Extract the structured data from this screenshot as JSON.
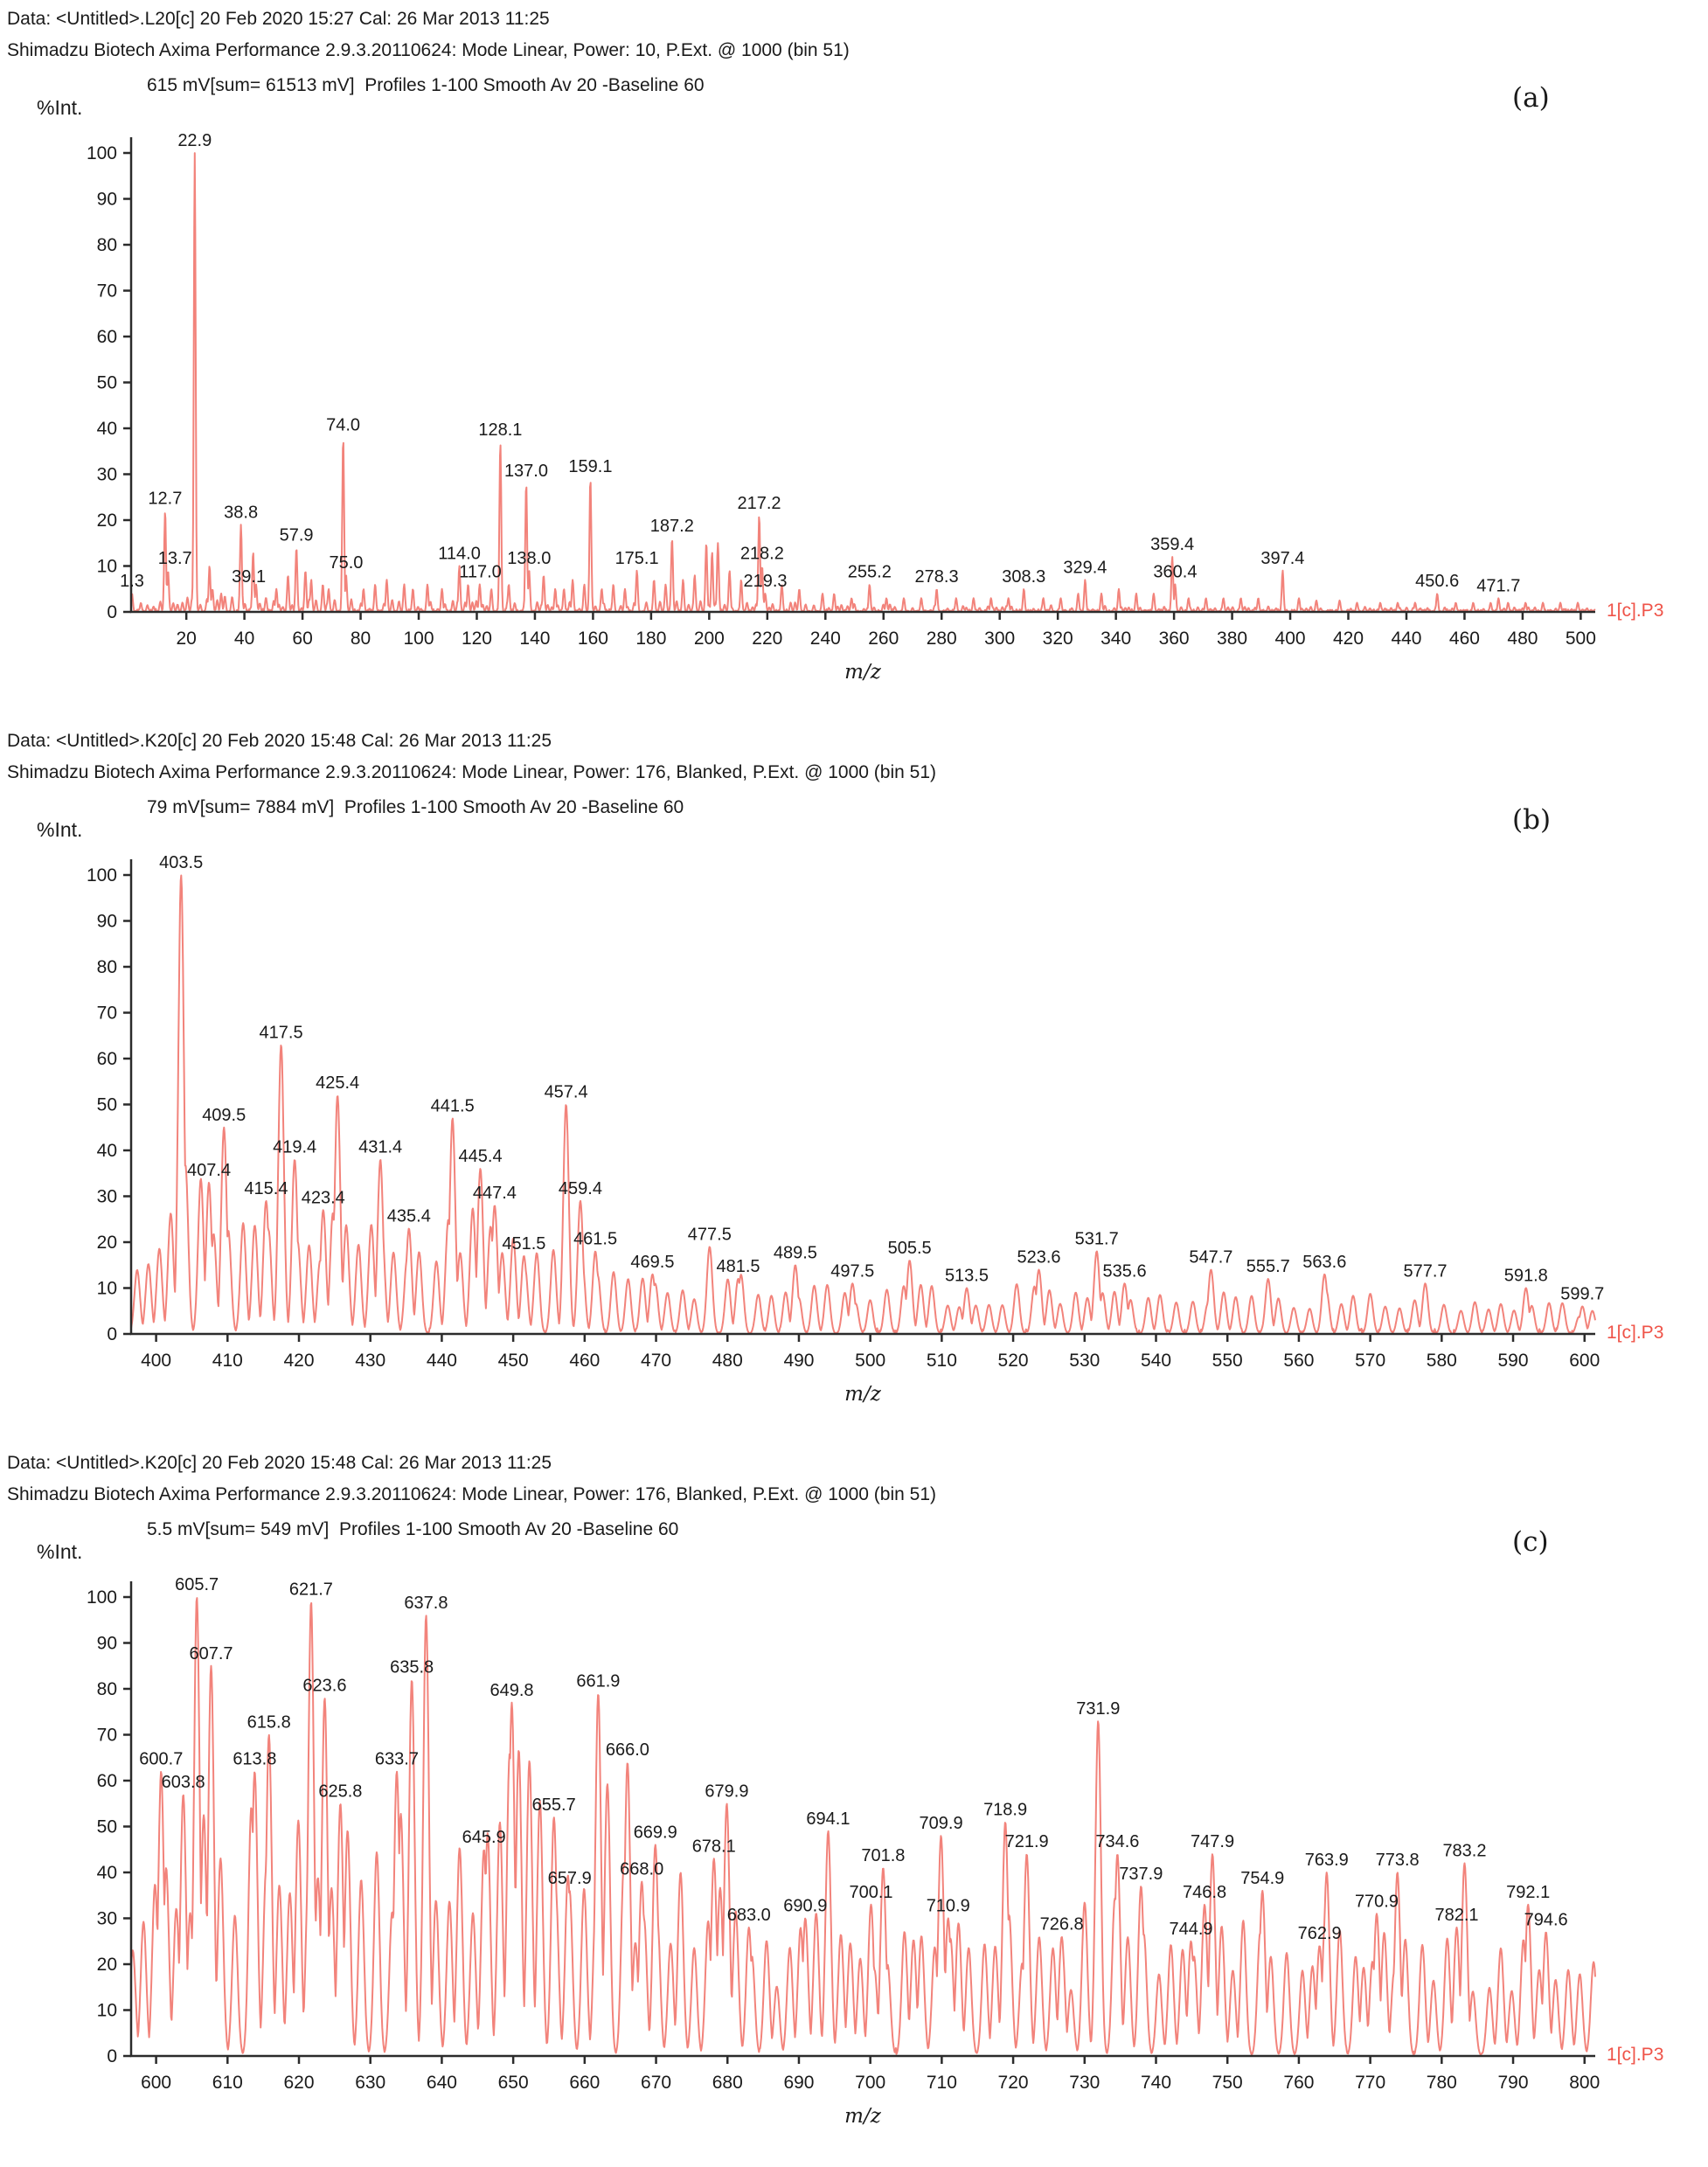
{
  "colors": {
    "trace": "#F2837B",
    "trace_label": "#EF5348",
    "axis": "#2b2b2b",
    "text": "#1a1a1a"
  },
  "chart_data": [
    {
      "type": "line",
      "panel_label": "(a)",
      "header_line1": "Data: <Untitled>.L20[c] 20 Feb 2020 15:27 Cal: 26 Mar 2013 11:25",
      "header_line2": "Shimadzu Biotech Axima Performance 2.9.3.20110624: Mode Linear, Power: 10, P.Ext. @ 1000 (bin 51)",
      "header_line3": "615 mV[sum= 61513 mV]  Profiles 1-100 Smooth Av 20 -Baseline 60",
      "ylabel": "%Int.",
      "xlabel": "m/z",
      "trace_label": "1[c].P3",
      "xlim": [
        1,
        505
      ],
      "ylim": [
        0,
        100
      ],
      "xtick_start": 20,
      "xtick_step": 20,
      "xtick_end": 500,
      "ytick_step": 10,
      "sigma": 0.45,
      "seed": 7,
      "gap_base": 1.0,
      "gap_jitter": 2.4,
      "amp_base": 0.3,
      "amp_jitter": 0.9,
      "floor": 0.7,
      "labeled_peaks": [
        {
          "m": "1.3",
          "i": 4
        },
        {
          "m": "12.7",
          "i": 22
        },
        {
          "m": "13.7",
          "i": 9,
          "dx": 8
        },
        {
          "m": "22.9",
          "i": 100
        },
        {
          "m": "38.8",
          "i": 19
        },
        {
          "m": "39.1",
          "i": 5,
          "dx": 8
        },
        {
          "m": "57.9",
          "i": 14
        },
        {
          "m": "74.0",
          "i": 38
        },
        {
          "m": "75.0",
          "i": 8
        },
        {
          "m": "114.0",
          "i": 10
        },
        {
          "m": "117.0",
          "i": 6,
          "dx": 14
        },
        {
          "m": "128.1",
          "i": 37
        },
        {
          "m": "137.0",
          "i": 28
        },
        {
          "m": "138.0",
          "i": 9
        },
        {
          "m": "159.1",
          "i": 29
        },
        {
          "m": "175.1",
          "i": 9
        },
        {
          "m": "187.2",
          "i": 16
        },
        {
          "m": "217.2",
          "i": 21
        },
        {
          "m": "218.2",
          "i": 10
        },
        {
          "m": "219.3",
          "i": 4
        },
        {
          "m": "255.2",
          "i": 6
        },
        {
          "m": "278.3",
          "i": 5
        },
        {
          "m": "308.3",
          "i": 5
        },
        {
          "m": "329.4",
          "i": 7
        },
        {
          "m": "359.4",
          "i": 12
        },
        {
          "m": "360.4",
          "i": 6
        },
        {
          "m": "397.4",
          "i": 9
        },
        {
          "m": "450.6",
          "i": 4
        },
        {
          "m": "471.7",
          "i": 3
        }
      ],
      "minor_peaks": [
        [
          28,
          10
        ],
        [
          29,
          5
        ],
        [
          32,
          4
        ],
        [
          43,
          13
        ],
        [
          44,
          6
        ],
        [
          51,
          5
        ],
        [
          55,
          8
        ],
        [
          61,
          9
        ],
        [
          63,
          7
        ],
        [
          67,
          6
        ],
        [
          69,
          5
        ],
        [
          81,
          5
        ],
        [
          85,
          6
        ],
        [
          89,
          7
        ],
        [
          95,
          6
        ],
        [
          98,
          5
        ],
        [
          103,
          6
        ],
        [
          108,
          5
        ],
        [
          121,
          6
        ],
        [
          125,
          5
        ],
        [
          131,
          6
        ],
        [
          143,
          8
        ],
        [
          147,
          5
        ],
        [
          150,
          5
        ],
        [
          153,
          7
        ],
        [
          157,
          6
        ],
        [
          163,
          5
        ],
        [
          167,
          6
        ],
        [
          171,
          5
        ],
        [
          181,
          7
        ],
        [
          185,
          6
        ],
        [
          191,
          7
        ],
        [
          195,
          8
        ],
        [
          199,
          15
        ],
        [
          201,
          13
        ],
        [
          203,
          15
        ],
        [
          207,
          9
        ],
        [
          211,
          7
        ],
        [
          225,
          6
        ],
        [
          231,
          5
        ],
        [
          239,
          4
        ],
        [
          243,
          4
        ],
        [
          249,
          3
        ],
        [
          261,
          3
        ],
        [
          267,
          3
        ],
        [
          273,
          3
        ],
        [
          285,
          3
        ],
        [
          291,
          3
        ],
        [
          297,
          3
        ],
        [
          303,
          3
        ],
        [
          315,
          3
        ],
        [
          321,
          3
        ],
        [
          327,
          4
        ],
        [
          335,
          4
        ],
        [
          341,
          5
        ],
        [
          347,
          4
        ],
        [
          353,
          4
        ],
        [
          365,
          3
        ],
        [
          371,
          3
        ],
        [
          377,
          3
        ],
        [
          383,
          3
        ],
        [
          389,
          3
        ],
        [
          403,
          3
        ],
        [
          409,
          2.5
        ],
        [
          417,
          2.5
        ],
        [
          423,
          2
        ],
        [
          431,
          2
        ],
        [
          437,
          2
        ],
        [
          443,
          2
        ],
        [
          457,
          2
        ],
        [
          463,
          2
        ],
        [
          469,
          2
        ],
        [
          475,
          2
        ],
        [
          481,
          2
        ],
        [
          487,
          2
        ],
        [
          493,
          2
        ],
        [
          499,
          2
        ]
      ],
      "noise_envelope": [
        [
          1,
          2
        ],
        [
          30,
          3
        ],
        [
          60,
          2.5
        ],
        [
          120,
          2
        ],
        [
          200,
          2
        ],
        [
          260,
          1.5
        ],
        [
          330,
          1.2
        ],
        [
          420,
          1
        ],
        [
          505,
          0.8
        ]
      ]
    },
    {
      "type": "line",
      "panel_label": "(b)",
      "header_line1": "Data: <Untitled>.K20[c] 20 Feb 2020 15:48 Cal: 26 Mar 2013 11:25",
      "header_line2": "Shimadzu Biotech Axima Performance 2.9.3.20110624: Mode Linear, Power: 176, Blanked, P.Ext. @ 1000 (bin 51)",
      "header_line3": "79 mV[sum= 7884 mV]  Profiles 1-100 Smooth Av 20 -Baseline 60",
      "ylabel": "%Int.",
      "xlabel": "m/z",
      "trace_label": "1[c].P3",
      "xlim": [
        396.5,
        601.5
      ],
      "ylim": [
        0,
        100
      ],
      "xtick_start": 400,
      "xtick_step": 10,
      "xtick_end": 600,
      "ytick_step": 10,
      "sigma": 0.55,
      "seed": 13,
      "gap_base": 1.5,
      "gap_jitter": 1.0,
      "amp_base": 0.55,
      "amp_jitter": 0.45,
      "floor": 1.4,
      "labeled_peaks": [
        {
          "m": "403.5",
          "i": 100
        },
        {
          "m": "407.4",
          "i": 33
        },
        {
          "m": "409.5",
          "i": 45
        },
        {
          "m": "415.4",
          "i": 29
        },
        {
          "m": "417.5",
          "i": 63
        },
        {
          "m": "419.4",
          "i": 38
        },
        {
          "m": "423.4",
          "i": 27
        },
        {
          "m": "425.4",
          "i": 52
        },
        {
          "m": "431.4",
          "i": 38
        },
        {
          "m": "435.4",
          "i": 23
        },
        {
          "m": "441.5",
          "i": 47
        },
        {
          "m": "445.4",
          "i": 36
        },
        {
          "m": "447.4",
          "i": 28
        },
        {
          "m": "451.5",
          "i": 17
        },
        {
          "m": "457.4",
          "i": 50
        },
        {
          "m": "459.4",
          "i": 29
        },
        {
          "m": "461.5",
          "i": 18
        },
        {
          "m": "469.5",
          "i": 13
        },
        {
          "m": "477.5",
          "i": 19
        },
        {
          "m": "481.5",
          "i": 12
        },
        {
          "m": "489.5",
          "i": 15
        },
        {
          "m": "497.5",
          "i": 11
        },
        {
          "m": "505.5",
          "i": 16
        },
        {
          "m": "513.5",
          "i": 10
        },
        {
          "m": "523.6",
          "i": 14
        },
        {
          "m": "531.7",
          "i": 18
        },
        {
          "m": "535.6",
          "i": 11
        },
        {
          "m": "547.7",
          "i": 14
        },
        {
          "m": "555.7",
          "i": 12
        },
        {
          "m": "563.6",
          "i": 13
        },
        {
          "m": "577.7",
          "i": 11
        },
        {
          "m": "591.8",
          "i": 10
        },
        {
          "m": "599.7",
          "i": 6
        }
      ],
      "minor_peaks": [],
      "noise_envelope": [
        [
          397,
          18
        ],
        [
          401,
          36
        ],
        [
          405,
          40
        ],
        [
          411,
          30
        ],
        [
          417,
          26
        ],
        [
          421,
          28
        ],
        [
          427,
          27
        ],
        [
          433,
          28
        ],
        [
          439,
          26
        ],
        [
          443,
          30
        ],
        [
          449,
          24
        ],
        [
          455,
          19
        ],
        [
          461,
          15
        ],
        [
          467,
          13
        ],
        [
          473,
          13
        ],
        [
          479,
          13
        ],
        [
          485,
          14
        ],
        [
          491,
          12
        ],
        [
          497,
          11
        ],
        [
          503,
          12
        ],
        [
          509,
          11
        ],
        [
          515,
          10
        ],
        [
          521,
          11
        ],
        [
          527,
          10
        ],
        [
          533,
          10
        ],
        [
          539,
          10
        ],
        [
          545,
          10
        ],
        [
          551,
          9
        ],
        [
          557,
          9
        ],
        [
          563,
          10
        ],
        [
          569,
          9
        ],
        [
          575,
          9
        ],
        [
          581,
          8
        ],
        [
          587,
          8
        ],
        [
          593,
          8
        ],
        [
          602,
          6
        ]
      ]
    },
    {
      "type": "line",
      "panel_label": "(c)",
      "header_line1": "Data: <Untitled>.K20[c] 20 Feb 2020 15:48 Cal: 26 Mar 2013 11:25",
      "header_line2": "Shimadzu Biotech Axima Performance 2.9.3.20110624: Mode Linear, Power: 176, Blanked, P.Ext. @ 1000 (bin 51)",
      "header_line3": "5.5 mV[sum= 549 mV]  Profiles 1-100 Smooth Av 20 -Baseline 60",
      "ylabel": "%Int.",
      "xlabel": "m/z",
      "trace_label": "1[c].P3",
      "xlim": [
        596.5,
        801.5
      ],
      "ylim": [
        0,
        100
      ],
      "xtick_start": 600,
      "xtick_step": 10,
      "xtick_end": 800,
      "ytick_step": 10,
      "sigma": 0.55,
      "seed": 29,
      "gap_base": 1.1,
      "gap_jitter": 1.3,
      "amp_base": 0.5,
      "amp_jitter": 0.5,
      "floor": 2,
      "labeled_peaks": [
        {
          "m": "600.7",
          "i": 62
        },
        {
          "m": "603.8",
          "i": 57
        },
        {
          "m": "605.7",
          "i": 100
        },
        {
          "m": "607.7",
          "i": 85
        },
        {
          "m": "613.8",
          "i": 62
        },
        {
          "m": "615.8",
          "i": 70
        },
        {
          "m": "621.7",
          "i": 99
        },
        {
          "m": "623.6",
          "i": 78
        },
        {
          "m": "625.8",
          "i": 55
        },
        {
          "m": "633.7",
          "i": 62
        },
        {
          "m": "635.8",
          "i": 82
        },
        {
          "m": "637.8",
          "i": 96
        },
        {
          "m": "645.9",
          "i": 45
        },
        {
          "m": "649.8",
          "i": 77
        },
        {
          "m": "655.7",
          "i": 52
        },
        {
          "m": "657.9",
          "i": 36
        },
        {
          "m": "661.9",
          "i": 79
        },
        {
          "m": "666.0",
          "i": 64
        },
        {
          "m": "668.0",
          "i": 38
        },
        {
          "m": "669.9",
          "i": 46
        },
        {
          "m": "678.1",
          "i": 43
        },
        {
          "m": "679.9",
          "i": 55
        },
        {
          "m": "683.0",
          "i": 28
        },
        {
          "m": "690.9",
          "i": 30
        },
        {
          "m": "694.1",
          "i": 49
        },
        {
          "m": "700.1",
          "i": 33
        },
        {
          "m": "701.8",
          "i": 41
        },
        {
          "m": "709.9",
          "i": 48
        },
        {
          "m": "710.9",
          "i": 30
        },
        {
          "m": "718.9",
          "i": 51
        },
        {
          "m": "721.9",
          "i": 44
        },
        {
          "m": "726.8",
          "i": 26
        },
        {
          "m": "731.9",
          "i": 73
        },
        {
          "m": "734.6",
          "i": 44
        },
        {
          "m": "737.9",
          "i": 37
        },
        {
          "m": "744.9",
          "i": 25
        },
        {
          "m": "746.8",
          "i": 33
        },
        {
          "m": "747.9",
          "i": 44
        },
        {
          "m": "754.9",
          "i": 36
        },
        {
          "m": "762.9",
          "i": 24
        },
        {
          "m": "763.9",
          "i": 40
        },
        {
          "m": "770.9",
          "i": 31
        },
        {
          "m": "773.8",
          "i": 40
        },
        {
          "m": "782.1",
          "i": 28
        },
        {
          "m": "783.2",
          "i": 42
        },
        {
          "m": "792.1",
          "i": 33
        },
        {
          "m": "794.6",
          "i": 27
        }
      ],
      "minor_peaks": [],
      "noise_envelope": [
        [
          597,
          40
        ],
        [
          601,
          62
        ],
        [
          605,
          62
        ],
        [
          609,
          58
        ],
        [
          613,
          58
        ],
        [
          617,
          68
        ],
        [
          621,
          62
        ],
        [
          625,
          55
        ],
        [
          629,
          58
        ],
        [
          633,
          58
        ],
        [
          637,
          62
        ],
        [
          641,
          55
        ],
        [
          645,
          56
        ],
        [
          648,
          70
        ],
        [
          652,
          70
        ],
        [
          656,
          52
        ],
        [
          660,
          58
        ],
        [
          664,
          64
        ],
        [
          668,
          42
        ],
        [
          672,
          40
        ],
        [
          676,
          40
        ],
        [
          680,
          45
        ],
        [
          684,
          27
        ],
        [
          688,
          27
        ],
        [
          692,
          33
        ],
        [
          696,
          32
        ],
        [
          700,
          32
        ],
        [
          704,
          30
        ],
        [
          708,
          34
        ],
        [
          712,
          36
        ],
        [
          716,
          38
        ],
        [
          720,
          38
        ],
        [
          724,
          33
        ],
        [
          728,
          25
        ],
        [
          732,
          45
        ],
        [
          736,
          34
        ],
        [
          740,
          28
        ],
        [
          744,
          23
        ],
        [
          748,
          34
        ],
        [
          752,
          31
        ],
        [
          756,
          29
        ],
        [
          760,
          23
        ],
        [
          764,
          31
        ],
        [
          768,
          28
        ],
        [
          772,
          30
        ],
        [
          776,
          28
        ],
        [
          780,
          27
        ],
        [
          784,
          27
        ],
        [
          788,
          25
        ],
        [
          792,
          27
        ],
        [
          796,
          24
        ],
        [
          802,
          22
        ]
      ]
    }
  ]
}
